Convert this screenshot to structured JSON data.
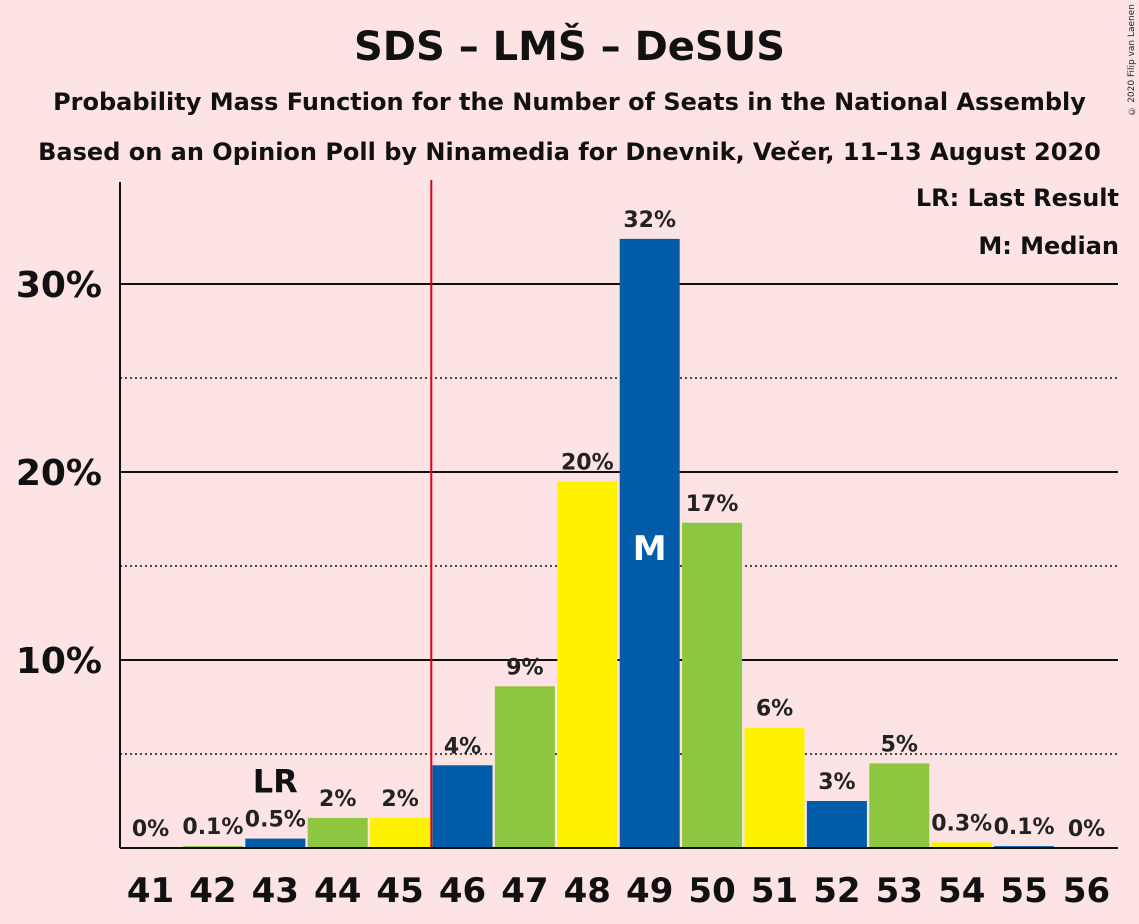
{
  "title": "SDS – LMŠ – DeSUS",
  "subtitle1": "Probability Mass Function for the Number of Seats in the National Assembly",
  "subtitle2": "Based on an Opinion Poll by Ninamedia for Dnevnik, Večer, 11–13 August 2020",
  "copyright": "© 2020 Filip van Laenen",
  "legend": {
    "last_result": "LR: Last Result",
    "median": "M: Median"
  },
  "colors": {
    "background": "#fde3e3",
    "blue": "#005ba9",
    "green": "#8dc63f",
    "yellow": "#fff200",
    "majority_line": "#e00000"
  },
  "chart_data": {
    "type": "bar",
    "categories": [
      "41",
      "42",
      "43",
      "44",
      "45",
      "46",
      "47",
      "48",
      "49",
      "50",
      "51",
      "52",
      "53",
      "54",
      "55",
      "56"
    ],
    "values": [
      0,
      0.1,
      0.5,
      1.6,
      1.6,
      4.4,
      8.6,
      19.5,
      32.4,
      17.3,
      6.4,
      2.5,
      4.5,
      0.3,
      0.1,
      0
    ],
    "labels": [
      "0%",
      "0.1%",
      "0.5%",
      "2%",
      "2%",
      "4%",
      "9%",
      "20%",
      "32%",
      "17%",
      "6%",
      "3%",
      "5%",
      "0.3%",
      "0.1%",
      "0%"
    ],
    "bar_colors": [
      "blue",
      "green",
      "blue",
      "green",
      "yellow",
      "blue",
      "green",
      "yellow",
      "blue",
      "green",
      "yellow",
      "blue",
      "green",
      "yellow",
      "blue",
      "green"
    ],
    "ylim": [
      0,
      35
    ],
    "y_ticks_major": [
      10,
      20,
      30
    ],
    "y_ticks_minor": [
      5,
      15,
      25
    ],
    "y_tick_labels": [
      "10%",
      "20%",
      "30%"
    ],
    "majority_threshold": 45.5,
    "last_result": {
      "seat": "43",
      "label": "LR"
    },
    "median": {
      "seat": "49",
      "label": "M"
    }
  }
}
